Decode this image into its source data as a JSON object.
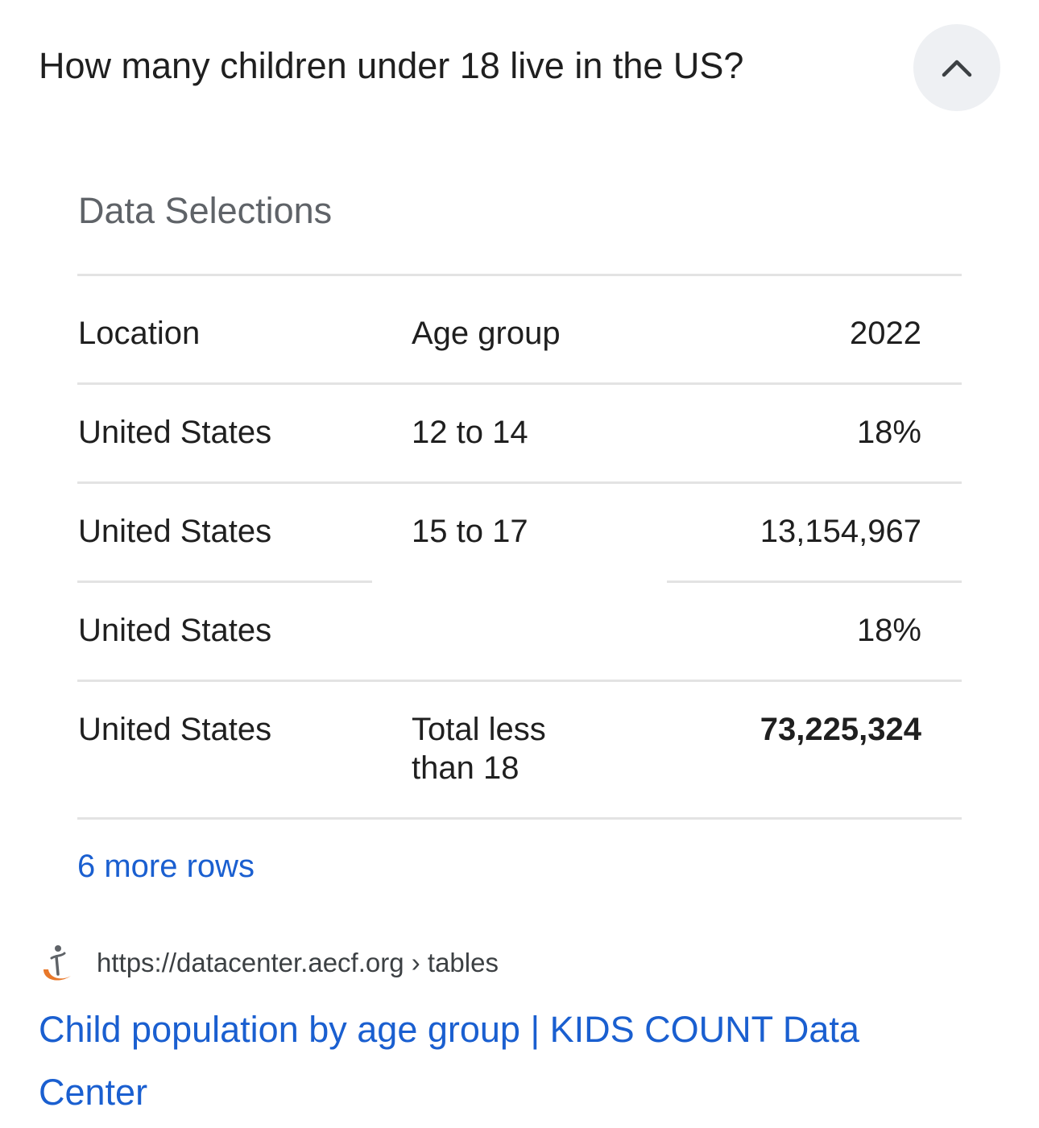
{
  "question": "How many children under 18 live in the US?",
  "collapse_icon": "chevron-up-icon",
  "section_title": "Data Selections",
  "table": {
    "headers": [
      "Location",
      "Age group",
      "2022"
    ],
    "rows": [
      [
        "United States",
        "12 to 14",
        "18%"
      ],
      [
        "United States",
        "15 to 17",
        "13,154,967"
      ],
      [
        "United States",
        "",
        "18%"
      ],
      [
        "United States",
        "Total less than 18",
        "73,225,324"
      ]
    ]
  },
  "more_rows": "6 more rows",
  "source": {
    "favicon": "aecf-logo-icon",
    "url": "https://datacenter.aecf.org › tables",
    "title": "Child population by age group | KIDS COUNT Data Center"
  },
  "colors": {
    "link": "#1a5fd0",
    "muted": "#5f6368",
    "divider": "#e3e3e3",
    "button_bg": "#eef0f3",
    "favicon_orange": "#e8782a"
  }
}
